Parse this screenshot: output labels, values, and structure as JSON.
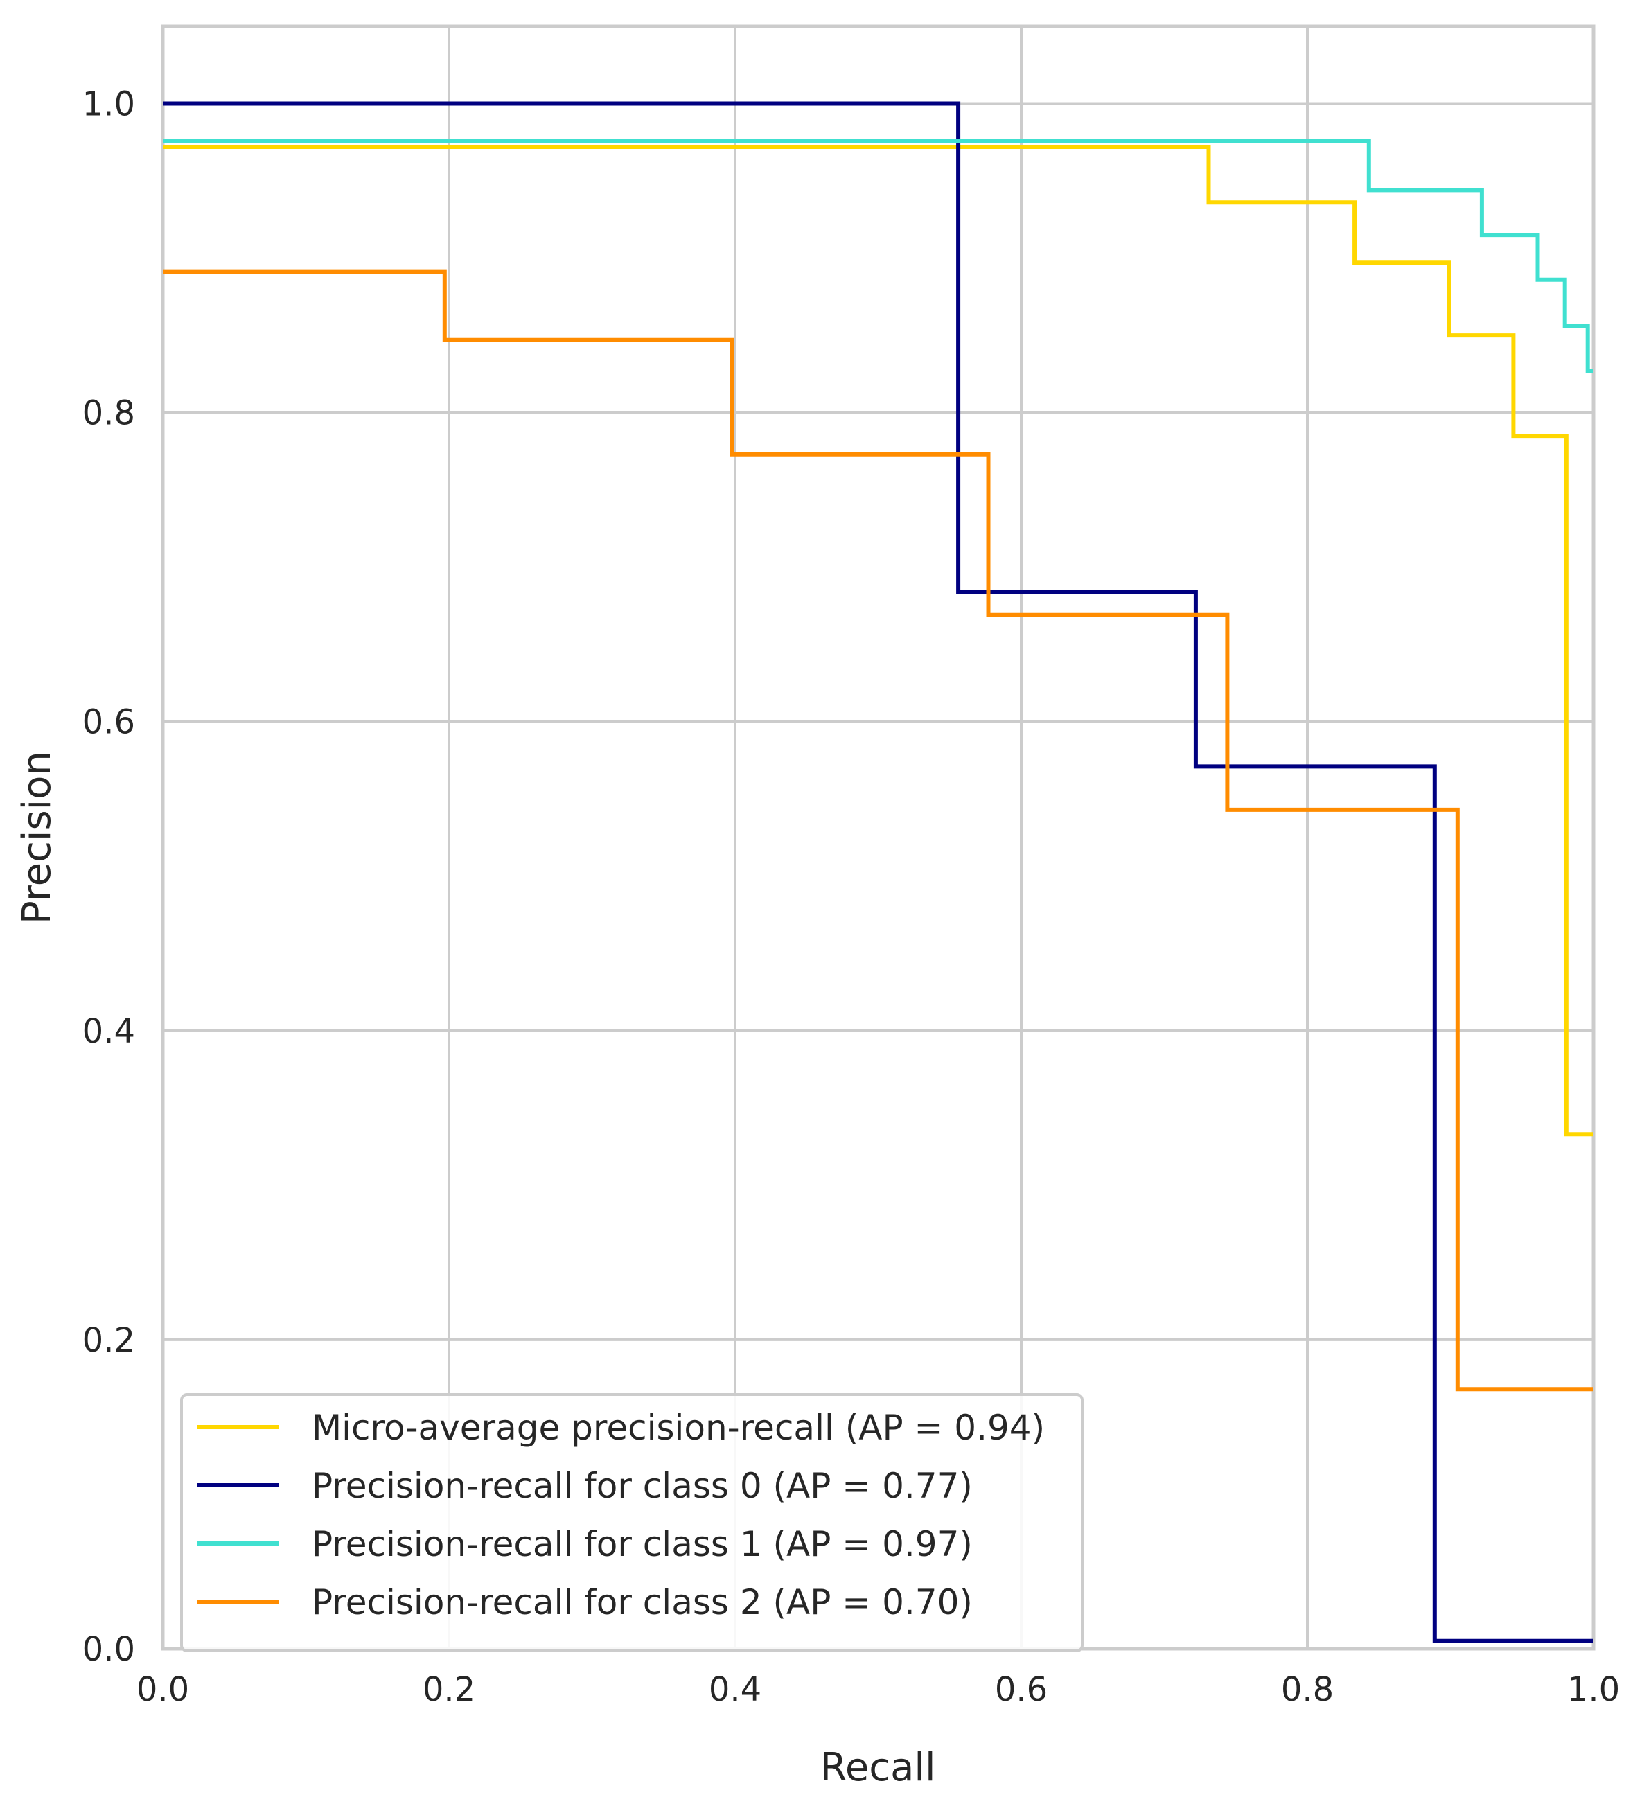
{
  "chart_data": {
    "type": "line",
    "title": "",
    "xlabel": "Recall",
    "ylabel": "Precision",
    "xlim": [
      0.0,
      1.0
    ],
    "ylim": [
      0.0,
      1.05
    ],
    "grid": true,
    "legend_position": "lower-left",
    "x_ticks": [
      "0.0",
      "0.2",
      "0.4",
      "0.6",
      "0.8",
      "1.0"
    ],
    "y_ticks": [
      "0.0",
      "0.2",
      "0.4",
      "0.6",
      "0.8",
      "1.0"
    ],
    "series": [
      {
        "name": "Micro-average precision-recall (AP = 0.94)",
        "color": "#ffd700",
        "step": true,
        "points": [
          [
            0.0,
            0.972
          ],
          [
            0.731,
            0.972
          ],
          [
            0.731,
            0.936
          ],
          [
            0.833,
            0.936
          ],
          [
            0.833,
            0.897
          ],
          [
            0.899,
            0.897
          ],
          [
            0.899,
            0.85
          ],
          [
            0.944,
            0.85
          ],
          [
            0.944,
            0.785
          ],
          [
            0.981,
            0.785
          ],
          [
            0.981,
            0.333
          ],
          [
            1.0,
            0.333
          ]
        ]
      },
      {
        "name": "Precision-recall for class 0 (AP = 0.77)",
        "color": "#000080",
        "step": true,
        "points": [
          [
            0.0,
            1.0
          ],
          [
            0.556,
            1.0
          ],
          [
            0.556,
            0.684
          ],
          [
            0.722,
            0.684
          ],
          [
            0.722,
            0.571
          ],
          [
            0.889,
            0.571
          ],
          [
            0.889,
            0.005
          ],
          [
            1.0,
            0.005
          ]
        ]
      },
      {
        "name": "Precision-recall for class 1 (AP = 0.97)",
        "color": "#40e0d0",
        "step": true,
        "points": [
          [
            0.0,
            0.976
          ],
          [
            0.843,
            0.976
          ],
          [
            0.843,
            0.944
          ],
          [
            0.922,
            0.944
          ],
          [
            0.922,
            0.915
          ],
          [
            0.961,
            0.915
          ],
          [
            0.961,
            0.886
          ],
          [
            0.98,
            0.886
          ],
          [
            0.98,
            0.856
          ],
          [
            0.996,
            0.856
          ],
          [
            0.996,
            0.827
          ],
          [
            1.0,
            0.827
          ]
        ]
      },
      {
        "name": "Precision-recall for class 2 (AP = 0.70)",
        "color": "#ff8c00",
        "step": true,
        "points": [
          [
            0.0,
            0.891
          ],
          [
            0.197,
            0.891
          ],
          [
            0.197,
            0.847
          ],
          [
            0.398,
            0.847
          ],
          [
            0.398,
            0.773
          ],
          [
            0.577,
            0.773
          ],
          [
            0.577,
            0.669
          ],
          [
            0.744,
            0.669
          ],
          [
            0.744,
            0.543
          ],
          [
            0.905,
            0.543
          ],
          [
            0.905,
            0.168
          ],
          [
            1.0,
            0.168
          ]
        ]
      }
    ]
  }
}
